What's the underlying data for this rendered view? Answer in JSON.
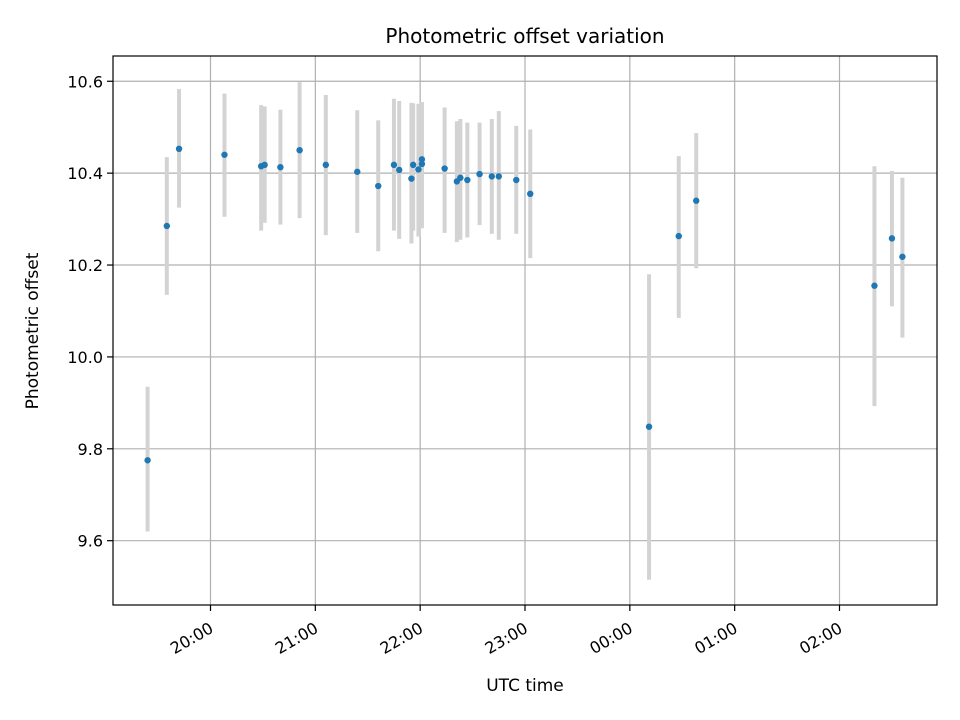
{
  "chart_data": {
    "type": "scatter",
    "title": "Photometric offset variation",
    "xlabel": "UTC time",
    "ylabel": "Photometric offset",
    "ylim": [
      9.46,
      10.655
    ],
    "xlim_hours": [
      19.07,
      26.93
    ],
    "x_ticks": [
      {
        "hour": 20,
        "label": "20:00"
      },
      {
        "hour": 21,
        "label": "21:00"
      },
      {
        "hour": 22,
        "label": "22:00"
      },
      {
        "hour": 23,
        "label": "23:00"
      },
      {
        "hour": 24,
        "label": "00:00"
      },
      {
        "hour": 25,
        "label": "01:00"
      },
      {
        "hour": 26,
        "label": "02:00"
      }
    ],
    "y_ticks": [
      9.6,
      9.8,
      10.0,
      10.2,
      10.4,
      10.6
    ],
    "grid": true,
    "marker_color": "#1f77b4",
    "errorbar_color": "#d3d3d3",
    "points": [
      {
        "x": "19:24",
        "y": 9.775,
        "lo": 9.62,
        "hi": 9.935
      },
      {
        "x": "19:35",
        "y": 10.285,
        "lo": 10.135,
        "hi": 10.435
      },
      {
        "x": "19:42",
        "y": 10.453,
        "lo": 10.325,
        "hi": 10.583
      },
      {
        "x": "20:08",
        "y": 10.44,
        "lo": 10.305,
        "hi": 10.573
      },
      {
        "x": "20:29",
        "y": 10.415,
        "lo": 10.275,
        "hi": 10.548
      },
      {
        "x": "20:31",
        "y": 10.418,
        "lo": 10.292,
        "hi": 10.545
      },
      {
        "x": "20:40",
        "y": 10.413,
        "lo": 10.288,
        "hi": 10.538
      },
      {
        "x": "20:51",
        "y": 10.45,
        "lo": 10.302,
        "hi": 10.598
      },
      {
        "x": "21:06",
        "y": 10.418,
        "lo": 10.265,
        "hi": 10.57
      },
      {
        "x": "21:24",
        "y": 10.403,
        "lo": 10.27,
        "hi": 10.537
      },
      {
        "x": "21:36",
        "y": 10.372,
        "lo": 10.23,
        "hi": 10.515
      },
      {
        "x": "21:45",
        "y": 10.418,
        "lo": 10.275,
        "hi": 10.562
      },
      {
        "x": "21:48",
        "y": 10.407,
        "lo": 10.257,
        "hi": 10.557
      },
      {
        "x": "21:55",
        "y": 10.388,
        "lo": 10.247,
        "hi": 10.553
      },
      {
        "x": "21:56",
        "y": 10.418,
        "lo": 10.275,
        "hi": 10.552
      },
      {
        "x": "21:59",
        "y": 10.408,
        "lo": 10.262,
        "hi": 10.551
      },
      {
        "x": "22:01",
        "y": 10.43,
        "lo": 10.288,
        "hi": 10.555
      },
      {
        "x": "22:01",
        "y": 10.42,
        "lo": 10.28,
        "hi": 10.553
      },
      {
        "x": "22:14",
        "y": 10.41,
        "lo": 10.27,
        "hi": 10.543
      },
      {
        "x": "22:21",
        "y": 10.382,
        "lo": 10.25,
        "hi": 10.513
      },
      {
        "x": "22:23",
        "y": 10.39,
        "lo": 10.255,
        "hi": 10.518
      },
      {
        "x": "22:27",
        "y": 10.385,
        "lo": 10.26,
        "hi": 10.51
      },
      {
        "x": "22:34",
        "y": 10.398,
        "lo": 10.287,
        "hi": 10.51
      },
      {
        "x": "22:41",
        "y": 10.393,
        "lo": 10.268,
        "hi": 10.518
      },
      {
        "x": "22:45",
        "y": 10.393,
        "lo": 10.255,
        "hi": 10.535
      },
      {
        "x": "22:55",
        "y": 10.385,
        "lo": 10.268,
        "hi": 10.503
      },
      {
        "x": "23:03",
        "y": 10.355,
        "lo": 10.215,
        "hi": 10.495
      },
      {
        "x": "24:11",
        "y": 9.848,
        "lo": 9.515,
        "hi": 10.18
      },
      {
        "x": "24:28",
        "y": 10.263,
        "lo": 10.085,
        "hi": 10.437
      },
      {
        "x": "24:38",
        "y": 10.34,
        "lo": 10.193,
        "hi": 10.487
      },
      {
        "x": "26:20",
        "y": 10.155,
        "lo": 9.893,
        "hi": 10.415
      },
      {
        "x": "26:30",
        "y": 10.258,
        "lo": 10.11,
        "hi": 10.405
      },
      {
        "x": "26:36",
        "y": 10.218,
        "lo": 10.042,
        "hi": 10.39
      }
    ]
  }
}
